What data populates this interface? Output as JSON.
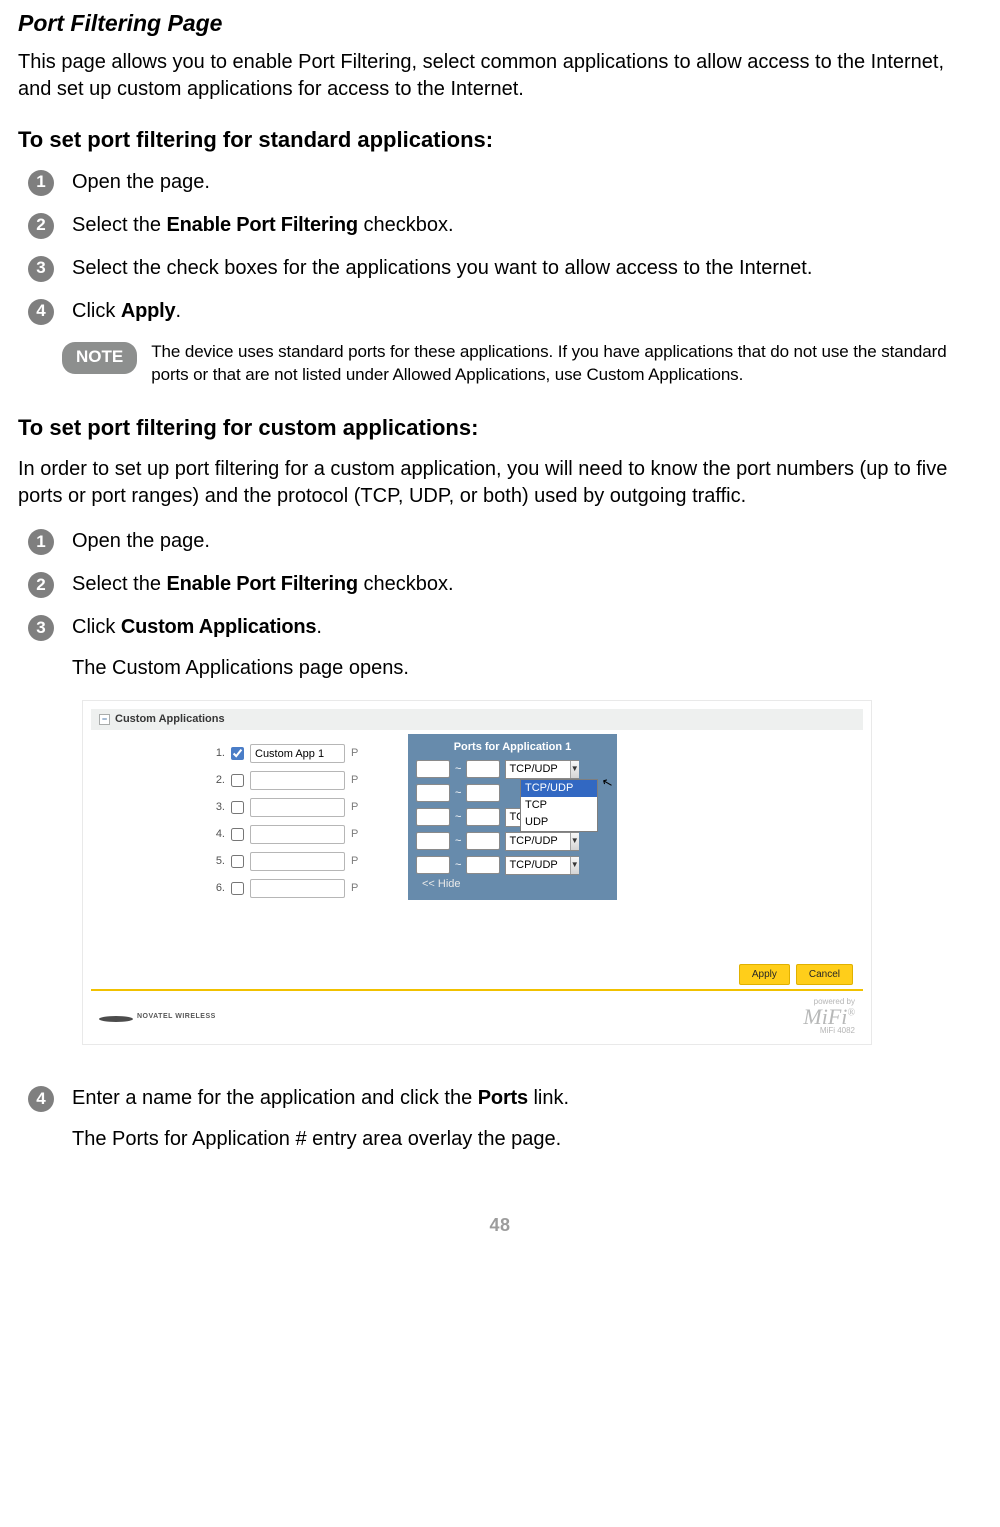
{
  "title": "Port Filtering Page",
  "intro": "This page allows you to enable Port Filtering, select common applications to allow access to the Internet, and set up custom applications for access to the Internet.",
  "section1": {
    "heading": "To set port filtering for standard applications:",
    "steps": {
      "s1": "Open the page.",
      "s2a": "Select the ",
      "s2b": "Enable Port Filtering",
      "s2c": " checkbox.",
      "s3": "Select the check boxes for the applications you want to allow access to the Internet.",
      "s4a": "Click ",
      "s4b": "Apply",
      "s4c": "."
    },
    "noteLabel": "NOTE",
    "noteText": "The device uses standard ports for these applications. If you have applications that do not use the standard ports or that are not listed under Allowed Applications, use Custom Applications."
  },
  "section2": {
    "heading": "To set port filtering for custom applications:",
    "desc": "In order to set up port filtering for a custom application, you will need to know the port numbers (up to five ports or port ranges) and the protocol (TCP, UDP, or both) used by outgoing traffic.",
    "steps": {
      "s1": "Open the page.",
      "s2a": "Select the ",
      "s2b": "Enable Port Filtering",
      "s2c": " checkbox.",
      "s3a": "Click ",
      "s3b": "Custom Applications",
      "s3c": ".",
      "s3sub": "The Custom Applications page opens.",
      "s4a": "Enter a name for the application and click the ",
      "s4b": "Ports",
      "s4c": " link.",
      "s4sub": "The Ports for Application # entry area overlay the page."
    }
  },
  "shot": {
    "panelTitle": "Custom Applications",
    "overlayTitle": "Ports for Application 1",
    "rows": [
      "1.",
      "2.",
      "3.",
      "4.",
      "5.",
      "6."
    ],
    "app1value": "Custom App 1",
    "tilde": "~",
    "proto": "TCP/UDP",
    "ddOptions": [
      "TCP/UDP",
      "TCP",
      "UDP"
    ],
    "hide": "<< Hide",
    "apply": "Apply",
    "cancel": "Cancel",
    "poweredBy": "powered by",
    "mifi": "MiFi",
    "mifiModel": "MiFi 4082",
    "leftLogo": "NOVATEL WIRELESS"
  },
  "pageNumber": "48"
}
